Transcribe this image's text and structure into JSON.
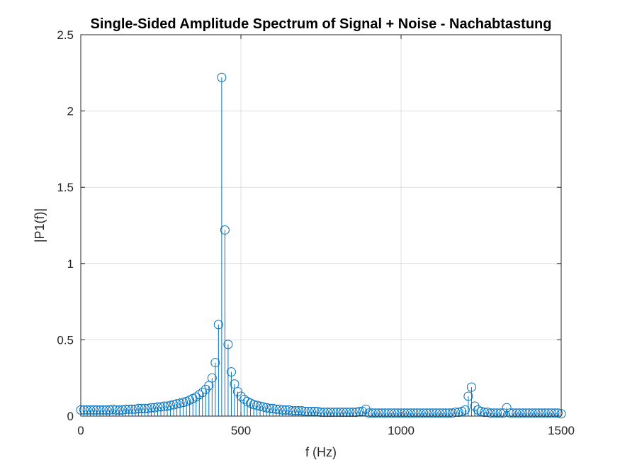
{
  "chart_data": {
    "type": "stem",
    "title": "Single-Sided Amplitude Spectrum of Signal + Noise - Nachabtastung",
    "xlabel": "f (Hz)",
    "ylabel": "|P1(f)|",
    "xlim": [
      0,
      1500
    ],
    "ylim": [
      0,
      2.5
    ],
    "xticks": [
      0,
      500,
      1000,
      1500
    ],
    "xtick_labels": [
      "0",
      "500",
      "1000",
      "1500"
    ],
    "yticks": [
      0,
      0.5,
      1,
      1.5,
      2,
      2.5
    ],
    "ytick_labels": [
      "0",
      "0.5",
      "1",
      "1.5",
      "2",
      "2.5"
    ],
    "grid": true,
    "color": "#0072BD",
    "series": [
      {
        "x": [
          0,
          10,
          20,
          30,
          40,
          50,
          60,
          70,
          80,
          90,
          100,
          110,
          120,
          130,
          140,
          150,
          160,
          170,
          180,
          190,
          200,
          210,
          220,
          230,
          240,
          250,
          260,
          270,
          280,
          290,
          300,
          310,
          320,
          330,
          340,
          350,
          360,
          370,
          380,
          390,
          400,
          410,
          420,
          430,
          440,
          450,
          460,
          470,
          480,
          490,
          500,
          510,
          520,
          530,
          540,
          550,
          560,
          570,
          580,
          590,
          600,
          610,
          620,
          630,
          640,
          650,
          660,
          670,
          680,
          690,
          700,
          710,
          720,
          730,
          740,
          750,
          760,
          770,
          780,
          790,
          800,
          810,
          820,
          830,
          840,
          850,
          860,
          870,
          880,
          890,
          900,
          910,
          920,
          930,
          940,
          950,
          960,
          970,
          980,
          990,
          1000,
          1010,
          1020,
          1030,
          1040,
          1050,
          1060,
          1070,
          1080,
          1090,
          1100,
          1110,
          1120,
          1130,
          1140,
          1150,
          1160,
          1170,
          1180,
          1190,
          1200,
          1210,
          1220,
          1230,
          1240,
          1250,
          1260,
          1270,
          1280,
          1290,
          1300,
          1310,
          1320,
          1330,
          1340,
          1350,
          1360,
          1370,
          1380,
          1390,
          1400,
          1410,
          1420,
          1430,
          1440,
          1450,
          1460,
          1470,
          1480,
          1490,
          1500
        ],
        "y": [
          0.04,
          0.04,
          0.04,
          0.04,
          0.04,
          0.04,
          0.04,
          0.04,
          0.04,
          0.04,
          0.045,
          0.04,
          0.04,
          0.04,
          0.045,
          0.045,
          0.045,
          0.045,
          0.05,
          0.05,
          0.05,
          0.05,
          0.055,
          0.055,
          0.06,
          0.06,
          0.065,
          0.065,
          0.07,
          0.075,
          0.08,
          0.085,
          0.09,
          0.095,
          0.105,
          0.115,
          0.125,
          0.14,
          0.155,
          0.175,
          0.2,
          0.25,
          0.35,
          0.6,
          2.22,
          1.22,
          0.47,
          0.29,
          0.21,
          0.16,
          0.13,
          0.11,
          0.095,
          0.085,
          0.075,
          0.07,
          0.065,
          0.06,
          0.055,
          0.05,
          0.05,
          0.045,
          0.045,
          0.04,
          0.04,
          0.04,
          0.035,
          0.035,
          0.035,
          0.035,
          0.03,
          0.03,
          0.03,
          0.03,
          0.03,
          0.025,
          0.025,
          0.025,
          0.025,
          0.025,
          0.025,
          0.025,
          0.025,
          0.025,
          0.025,
          0.025,
          0.025,
          0.03,
          0.03,
          0.045,
          0.02,
          0.02,
          0.02,
          0.02,
          0.02,
          0.02,
          0.02,
          0.02,
          0.02,
          0.02,
          0.02,
          0.02,
          0.02,
          0.02,
          0.02,
          0.02,
          0.02,
          0.02,
          0.02,
          0.02,
          0.02,
          0.02,
          0.02,
          0.02,
          0.02,
          0.02,
          0.02,
          0.025,
          0.025,
          0.03,
          0.04,
          0.13,
          0.19,
          0.065,
          0.04,
          0.03,
          0.025,
          0.025,
          0.02,
          0.02,
          0.02,
          0.02,
          0.02,
          0.055,
          0.02,
          0.02,
          0.02,
          0.02,
          0.02,
          0.02,
          0.02,
          0.02,
          0.02,
          0.02,
          0.02,
          0.02,
          0.02,
          0.02,
          0.02,
          0.02,
          0.015
        ]
      }
    ]
  }
}
